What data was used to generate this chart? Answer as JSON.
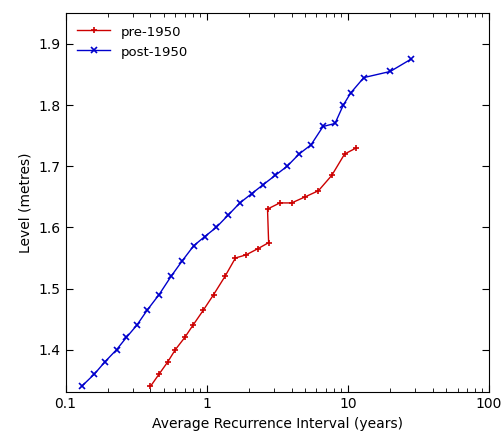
{
  "xlabel": "Average Recurrence Interval (years)",
  "ylabel": "Level (metres)",
  "xlim": [
    0.1,
    100
  ],
  "ylim": [
    1.33,
    1.95
  ],
  "pre1950_x": [
    0.4,
    0.46,
    0.53,
    0.6,
    0.7,
    0.8,
    0.95,
    1.12,
    1.35,
    1.6,
    1.9,
    2.3,
    2.75,
    2.7,
    3.3,
    4.0,
    5.0,
    6.2,
    7.7,
    9.5,
    11.5
  ],
  "pre1950_y": [
    1.34,
    1.36,
    1.38,
    1.4,
    1.42,
    1.44,
    1.465,
    1.49,
    1.52,
    1.55,
    1.555,
    1.565,
    1.575,
    1.63,
    1.64,
    1.64,
    1.65,
    1.66,
    1.685,
    1.72,
    1.73
  ],
  "post1950_x": [
    0.13,
    0.16,
    0.19,
    0.23,
    0.27,
    0.32,
    0.38,
    0.46,
    0.56,
    0.67,
    0.81,
    0.97,
    1.17,
    1.42,
    1.72,
    2.08,
    2.52,
    3.06,
    3.72,
    4.52,
    5.49,
    6.68,
    8.12,
    9.3,
    10.5,
    13.0,
    20.0,
    28.0
  ],
  "post1950_y": [
    1.34,
    1.36,
    1.38,
    1.4,
    1.42,
    1.44,
    1.465,
    1.49,
    1.52,
    1.545,
    1.57,
    1.585,
    1.6,
    1.62,
    1.64,
    1.655,
    1.67,
    1.685,
    1.7,
    1.72,
    1.735,
    1.765,
    1.77,
    1.8,
    1.82,
    1.845,
    1.855,
    1.875
  ],
  "pre1950_color": "#cc0000",
  "post1950_color": "#0000cc",
  "pre1950_label": "pre-1950",
  "post1950_label": "post-1950",
  "linewidth": 1.0,
  "pre1950_markersize": 5,
  "post1950_markersize": 5,
  "yticks": [
    1.4,
    1.5,
    1.6,
    1.7,
    1.8,
    1.9
  ],
  "xticks": [
    0.1,
    1.0,
    10.0,
    100.0
  ],
  "xtick_labels": [
    "0.1",
    "1",
    "10",
    "100"
  ]
}
